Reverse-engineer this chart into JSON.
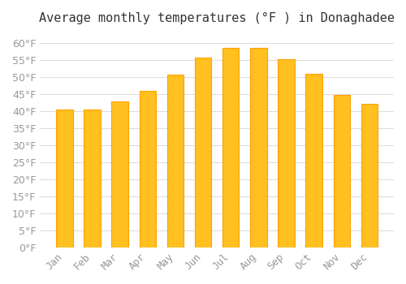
{
  "title": "Average monthly temperatures (°F ) in Donaghadee",
  "months": [
    "Jan",
    "Feb",
    "Mar",
    "Apr",
    "May",
    "Jun",
    "Jul",
    "Aug",
    "Sep",
    "Oct",
    "Nov",
    "Dec"
  ],
  "values": [
    40.6,
    40.6,
    43.0,
    46.0,
    50.7,
    55.8,
    58.6,
    58.6,
    55.4,
    51.1,
    44.8,
    42.3
  ],
  "bar_color": "#FFC020",
  "bar_edge_color": "#FFA000",
  "background_color": "#FFFFFF",
  "grid_color": "#DDDDDD",
  "ylim": [
    0,
    63
  ],
  "yticks": [
    0,
    5,
    10,
    15,
    20,
    25,
    30,
    35,
    40,
    45,
    50,
    55,
    60
  ],
  "title_fontsize": 11,
  "tick_fontsize": 9,
  "tick_label_color": "#999999"
}
